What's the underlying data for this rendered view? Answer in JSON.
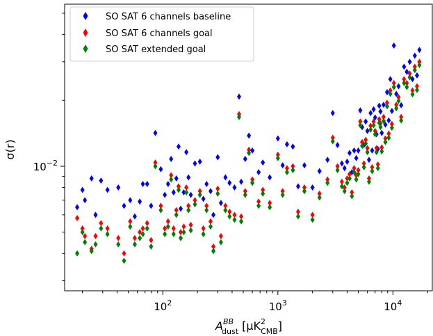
{
  "chart_data": {
    "type": "scatter",
    "xscale": "log",
    "yscale": "log",
    "xlim": [
      14,
      22000
    ],
    "ylim": [
      0.0027,
      0.055
    ],
    "grid": false,
    "legend_position": "upper-left",
    "xlabel": {
      "main": "A",
      "sup": "BB",
      "sub": "dust",
      "unit": " [μK",
      "unit_sup": "2",
      "unit_sub": "CMB",
      "close": "]"
    },
    "ylabel": "σ(r)",
    "x_ticks": [
      {
        "value": 100,
        "base": "10",
        "exp": "2"
      },
      {
        "value": 1000,
        "base": "10",
        "exp": "3"
      },
      {
        "value": 10000,
        "base": "10",
        "exp": "4"
      }
    ],
    "y_ticks": [
      {
        "value": 0.01,
        "base": "10",
        "exp": "−2"
      }
    ],
    "series": [
      {
        "name": "SO SAT 6 channels baseline",
        "color": "#0000ff",
        "points": [
          [
            18,
            0.0065
          ],
          [
            20,
            0.0078
          ],
          [
            21,
            0.007
          ],
          [
            24,
            0.0088
          ],
          [
            26,
            0.006
          ],
          [
            29,
            0.0086
          ],
          [
            33,
            0.0078
          ],
          [
            41,
            0.008
          ],
          [
            46,
            0.0066
          ],
          [
            52,
            0.007
          ],
          [
            57,
            0.0059
          ],
          [
            63,
            0.0069
          ],
          [
            67,
            0.0083
          ],
          [
            73,
            0.0083
          ],
          [
            79,
            0.0066
          ],
          [
            86,
            0.0142
          ],
          [
            96,
            0.0097
          ],
          [
            104,
            0.0074
          ],
          [
            111,
            0.0083
          ],
          [
            118,
            0.0108
          ],
          [
            124,
            0.0076
          ],
          [
            131,
            0.0088
          ],
          [
            137,
            0.0123
          ],
          [
            143,
            0.0064
          ],
          [
            152,
            0.0076
          ],
          [
            160,
            0.0116
          ],
          [
            167,
            0.0089
          ],
          [
            175,
            0.0074
          ],
          [
            190,
            0.0103
          ],
          [
            210,
            0.0105
          ],
          [
            225,
            0.0071
          ],
          [
            240,
            0.0083
          ],
          [
            260,
            0.0077
          ],
          [
            275,
            0.006
          ],
          [
            300,
            0.011
          ],
          [
            320,
            0.0068
          ],
          [
            350,
            0.0089
          ],
          [
            380,
            0.0084
          ],
          [
            420,
            0.008
          ],
          [
            460,
            0.0208
          ],
          [
            480,
            0.0085
          ],
          [
            520,
            0.0108
          ],
          [
            560,
            0.0138
          ],
          [
            600,
            0.0118
          ],
          [
            680,
            0.0094
          ],
          [
            740,
            0.0104
          ],
          [
            850,
            0.0089
          ],
          [
            1000,
            0.0134
          ],
          [
            1100,
            0.0101
          ],
          [
            1200,
            0.0126
          ],
          [
            1350,
            0.0123
          ],
          [
            1500,
            0.0081
          ],
          [
            1700,
            0.0101
          ],
          [
            2000,
            0.008
          ],
          [
            2300,
            0.0095
          ],
          [
            2700,
            0.0107
          ],
          [
            3000,
            0.0175
          ],
          [
            3300,
            0.0125
          ],
          [
            3600,
            0.0103
          ],
          [
            3800,
            0.0098
          ],
          [
            4000,
            0.0105
          ],
          [
            4200,
            0.0115
          ],
          [
            4400,
            0.0094
          ],
          [
            4600,
            0.0118
          ],
          [
            4800,
            0.0109
          ],
          [
            5000,
            0.0118
          ],
          [
            5200,
            0.018
          ],
          [
            5400,
            0.0151
          ],
          [
            5600,
            0.0125
          ],
          [
            5800,
            0.016
          ],
          [
            6000,
            0.0145
          ],
          [
            6200,
            0.0107
          ],
          [
            6400,
            0.0175
          ],
          [
            6600,
            0.0118
          ],
          [
            6800,
            0.0182
          ],
          [
            7000,
            0.0167
          ],
          [
            7200,
            0.014
          ],
          [
            7400,
            0.012
          ],
          [
            7600,
            0.0189
          ],
          [
            7800,
            0.0178
          ],
          [
            8000,
            0.0142
          ],
          [
            8300,
            0.0191
          ],
          [
            8600,
            0.0155
          ],
          [
            8900,
            0.0218
          ],
          [
            9200,
            0.0162
          ],
          [
            9500,
            0.025
          ],
          [
            9800,
            0.0179
          ],
          [
            10200,
            0.0356
          ],
          [
            10700,
            0.0214
          ],
          [
            11200,
            0.0232
          ],
          [
            11800,
            0.019
          ],
          [
            12500,
            0.0285
          ],
          [
            13200,
            0.027
          ],
          [
            14000,
            0.03
          ],
          [
            14800,
            0.025
          ],
          [
            15500,
            0.032
          ],
          [
            16200,
            0.026
          ],
          [
            17000,
            0.034
          ]
        ]
      },
      {
        "name": "SO SAT 6 channels goal",
        "color": "#ff0000",
        "points": [
          [
            18,
            0.0058
          ],
          [
            20,
            0.0052
          ],
          [
            21,
            0.0048
          ],
          [
            24,
            0.0042
          ],
          [
            26,
            0.0048
          ],
          [
            29,
            0.0055
          ],
          [
            33,
            0.0052
          ],
          [
            41,
            0.0047
          ],
          [
            46,
            0.004
          ],
          [
            52,
            0.0056
          ],
          [
            57,
            0.0047
          ],
          [
            63,
            0.005
          ],
          [
            67,
            0.0052
          ],
          [
            73,
            0.0055
          ],
          [
            79,
            0.0046
          ],
          [
            86,
            0.0104
          ],
          [
            96,
            0.0066
          ],
          [
            104,
            0.0052
          ],
          [
            111,
            0.0056
          ],
          [
            118,
            0.0091
          ],
          [
            124,
            0.0052
          ],
          [
            131,
            0.0063
          ],
          [
            137,
            0.0081
          ],
          [
            143,
            0.005
          ],
          [
            152,
            0.0053
          ],
          [
            160,
            0.008
          ],
          [
            167,
            0.0066
          ],
          [
            175,
            0.0054
          ],
          [
            190,
            0.007
          ],
          [
            210,
            0.0077
          ],
          [
            225,
            0.0052
          ],
          [
            240,
            0.0066
          ],
          [
            260,
            0.0056
          ],
          [
            275,
            0.0043
          ],
          [
            300,
            0.0079
          ],
          [
            320,
            0.0048
          ],
          [
            350,
            0.0066
          ],
          [
            380,
            0.0062
          ],
          [
            420,
            0.006
          ],
          [
            460,
            0.0173
          ],
          [
            480,
            0.0059
          ],
          [
            520,
            0.0077
          ],
          [
            560,
            0.0119
          ],
          [
            600,
            0.0087
          ],
          [
            680,
            0.0069
          ],
          [
            740,
            0.0078
          ],
          [
            850,
            0.0068
          ],
          [
            1000,
            0.0113
          ],
          [
            1100,
            0.0077
          ],
          [
            1200,
            0.0098
          ],
          [
            1350,
            0.01
          ],
          [
            1500,
            0.0062
          ],
          [
            1700,
            0.008
          ],
          [
            2000,
            0.006
          ],
          [
            2300,
            0.0075
          ],
          [
            2700,
            0.0087
          ],
          [
            3000,
            0.0135
          ],
          [
            3300,
            0.01
          ],
          [
            3600,
            0.0085
          ],
          [
            3800,
            0.008
          ],
          [
            4000,
            0.0088
          ],
          [
            4200,
            0.0092
          ],
          [
            4400,
            0.0076
          ],
          [
            4600,
            0.0098
          ],
          [
            4800,
            0.0091
          ],
          [
            5000,
            0.0096
          ],
          [
            5200,
            0.016
          ],
          [
            5400,
            0.0129
          ],
          [
            5600,
            0.0103
          ],
          [
            5800,
            0.0132
          ],
          [
            6000,
            0.0121
          ],
          [
            6200,
            0.0088
          ],
          [
            6400,
            0.0153
          ],
          [
            6600,
            0.0099
          ],
          [
            6800,
            0.016
          ],
          [
            7000,
            0.0145
          ],
          [
            7200,
            0.0121
          ],
          [
            7400,
            0.0102
          ],
          [
            7600,
            0.0164
          ],
          [
            7800,
            0.0157
          ],
          [
            8000,
            0.0122
          ],
          [
            8300,
            0.0168
          ],
          [
            8600,
            0.0134
          ],
          [
            8900,
            0.0195
          ],
          [
            9200,
            0.0141
          ],
          [
            9500,
            0.0222
          ],
          [
            9800,
            0.0156
          ],
          [
            10200,
            0.024
          ],
          [
            10700,
            0.0191
          ],
          [
            11200,
            0.0207
          ],
          [
            11800,
            0.0168
          ],
          [
            12500,
            0.025
          ],
          [
            13200,
            0.024
          ],
          [
            14000,
            0.0265
          ],
          [
            14800,
            0.0222
          ],
          [
            15500,
            0.0285
          ],
          [
            16200,
            0.0232
          ],
          [
            17000,
            0.03
          ]
        ]
      },
      {
        "name": "SO SAT extended goal",
        "color": "#008000",
        "points": [
          [
            18,
            0.004
          ],
          [
            20,
            0.005
          ],
          [
            21,
            0.0045
          ],
          [
            24,
            0.0041
          ],
          [
            26,
            0.0044
          ],
          [
            29,
            0.0052
          ],
          [
            33,
            0.0049
          ],
          [
            41,
            0.0044
          ],
          [
            46,
            0.0037
          ],
          [
            52,
            0.0053
          ],
          [
            57,
            0.0044
          ],
          [
            63,
            0.0047
          ],
          [
            67,
            0.0049
          ],
          [
            73,
            0.0052
          ],
          [
            79,
            0.0043
          ],
          [
            86,
            0.01
          ],
          [
            96,
            0.0063
          ],
          [
            104,
            0.0049
          ],
          [
            111,
            0.0053
          ],
          [
            118,
            0.0087
          ],
          [
            124,
            0.0049
          ],
          [
            131,
            0.006
          ],
          [
            137,
            0.0078
          ],
          [
            143,
            0.0047
          ],
          [
            152,
            0.005
          ],
          [
            160,
            0.0076
          ],
          [
            167,
            0.0063
          ],
          [
            175,
            0.0051
          ],
          [
            190,
            0.0067
          ],
          [
            210,
            0.0074
          ],
          [
            225,
            0.0049
          ],
          [
            240,
            0.0063
          ],
          [
            260,
            0.0053
          ],
          [
            275,
            0.0041
          ],
          [
            300,
            0.0075
          ],
          [
            320,
            0.0045
          ],
          [
            350,
            0.0063
          ],
          [
            380,
            0.0059
          ],
          [
            420,
            0.0057
          ],
          [
            460,
            0.0168
          ],
          [
            480,
            0.0056
          ],
          [
            520,
            0.0074
          ],
          [
            560,
            0.0115
          ],
          [
            600,
            0.0084
          ],
          [
            680,
            0.0066
          ],
          [
            740,
            0.0075
          ],
          [
            850,
            0.0065
          ],
          [
            1000,
            0.0109
          ],
          [
            1100,
            0.0074
          ],
          [
            1200,
            0.0094
          ],
          [
            1350,
            0.0096
          ],
          [
            1500,
            0.0059
          ],
          [
            1700,
            0.0077
          ],
          [
            2000,
            0.0057
          ],
          [
            2300,
            0.0072
          ],
          [
            2700,
            0.0084
          ],
          [
            3000,
            0.013
          ],
          [
            3300,
            0.0096
          ],
          [
            3600,
            0.0081
          ],
          [
            3800,
            0.0077
          ],
          [
            4000,
            0.0084
          ],
          [
            4200,
            0.0088
          ],
          [
            4400,
            0.0073
          ],
          [
            4600,
            0.0094
          ],
          [
            4800,
            0.0087
          ],
          [
            5000,
            0.0092
          ],
          [
            5200,
            0.0154
          ],
          [
            5400,
            0.0124
          ],
          [
            5600,
            0.0099
          ],
          [
            5800,
            0.0127
          ],
          [
            6000,
            0.0116
          ],
          [
            6200,
            0.0085
          ],
          [
            6400,
            0.0147
          ],
          [
            6600,
            0.0095
          ],
          [
            6800,
            0.0154
          ],
          [
            7000,
            0.014
          ],
          [
            7200,
            0.0116
          ],
          [
            7400,
            0.0098
          ],
          [
            7600,
            0.0158
          ],
          [
            7800,
            0.0151
          ],
          [
            8000,
            0.0117
          ],
          [
            8300,
            0.0161
          ],
          [
            8600,
            0.0129
          ],
          [
            8900,
            0.0188
          ],
          [
            9200,
            0.0135
          ],
          [
            9500,
            0.0214
          ],
          [
            9800,
            0.015
          ],
          [
            10200,
            0.023
          ],
          [
            10700,
            0.0184
          ],
          [
            11200,
            0.0199
          ],
          [
            11800,
            0.0162
          ],
          [
            12500,
            0.024
          ],
          [
            13200,
            0.023
          ],
          [
            14000,
            0.0255
          ],
          [
            14800,
            0.0213
          ],
          [
            15500,
            0.0275
          ],
          [
            16200,
            0.0223
          ],
          [
            17000,
            0.029
          ]
        ]
      }
    ]
  }
}
